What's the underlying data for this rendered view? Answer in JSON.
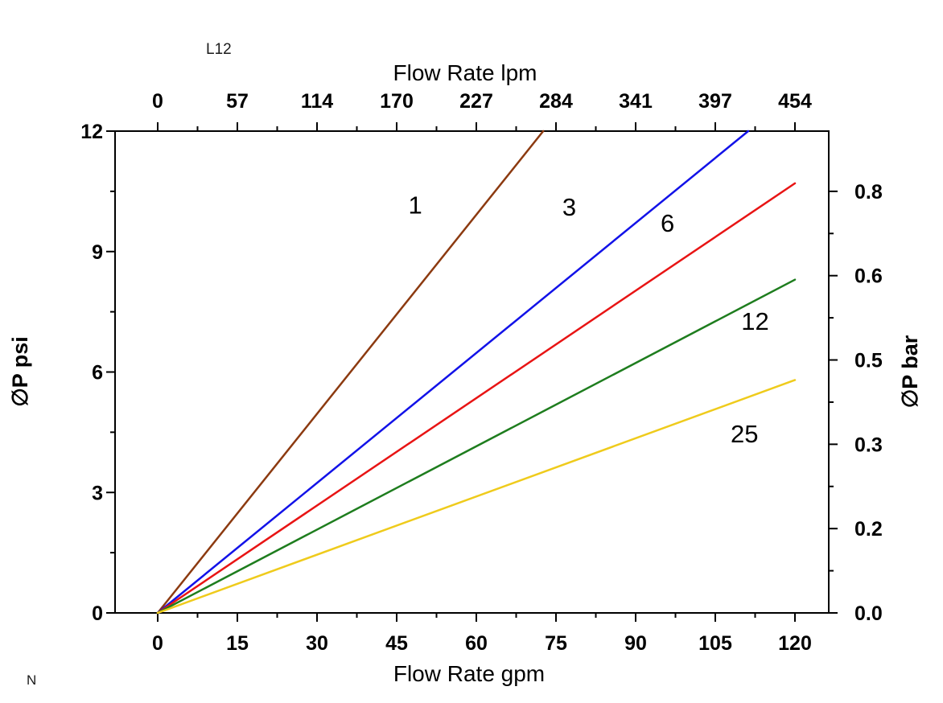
{
  "page": {
    "background": "#ffffff"
  },
  "annotations": {
    "top_left": "L12",
    "bottom_left": "N"
  },
  "chart_data": {
    "type": "line",
    "title": "",
    "grid": false,
    "legend_position": "none",
    "x_bottom": {
      "label": "Flow Rate gpm",
      "range": [
        0,
        120
      ],
      "ticks": [
        0,
        15,
        30,
        45,
        60,
        75,
        90,
        105,
        120
      ]
    },
    "x_top": {
      "label": "Flow Rate lpm",
      "ticks": [
        {
          "label": "0",
          "gpm": 0
        },
        {
          "label": "57",
          "gpm": 15
        },
        {
          "label": "114",
          "gpm": 30
        },
        {
          "label": "170",
          "gpm": 45
        },
        {
          "label": "227",
          "gpm": 60
        },
        {
          "label": "284",
          "gpm": 75
        },
        {
          "label": "341",
          "gpm": 90
        },
        {
          "label": "397",
          "gpm": 105
        },
        {
          "label": "454",
          "gpm": 120
        }
      ]
    },
    "y_left": {
      "label": "∅P psi",
      "range": [
        0,
        12
      ],
      "ticks": [
        0,
        3,
        6,
        9,
        12
      ]
    },
    "y_right": {
      "label": "∅P bar",
      "ticks": [
        {
          "label": "0.0",
          "psi": 0
        },
        {
          "label": "0.2",
          "psi": 2.1
        },
        {
          "label": "0.3",
          "psi": 4.2
        },
        {
          "label": "0.5",
          "psi": 6.3
        },
        {
          "label": "0.6",
          "psi": 8.4
        },
        {
          "label": "0.8",
          "psi": 10.5
        }
      ]
    },
    "series": [
      {
        "name": "1",
        "color": "#8C3A10",
        "points": [
          [
            0,
            0
          ],
          [
            72.6,
            12
          ]
        ],
        "label_pos": [
          48.5,
          10.15
        ]
      },
      {
        "name": "3",
        "color": "#1212E8",
        "points": [
          [
            0,
            0
          ],
          [
            111.2,
            12
          ]
        ],
        "label_pos": [
          77.5,
          10.1
        ]
      },
      {
        "name": "6",
        "color": "#E81414",
        "points": [
          [
            0,
            0
          ],
          [
            120,
            10.7
          ]
        ],
        "label_pos": [
          96,
          9.7
        ]
      },
      {
        "name": "12",
        "color": "#1E7D1E",
        "points": [
          [
            0,
            0
          ],
          [
            120,
            8.3
          ]
        ],
        "label_pos": [
          112.5,
          7.25
        ]
      },
      {
        "name": "25",
        "color": "#EFCB1C",
        "points": [
          [
            0,
            0
          ],
          [
            120,
            5.8
          ]
        ],
        "label_pos": [
          110.5,
          4.45
        ]
      }
    ]
  }
}
